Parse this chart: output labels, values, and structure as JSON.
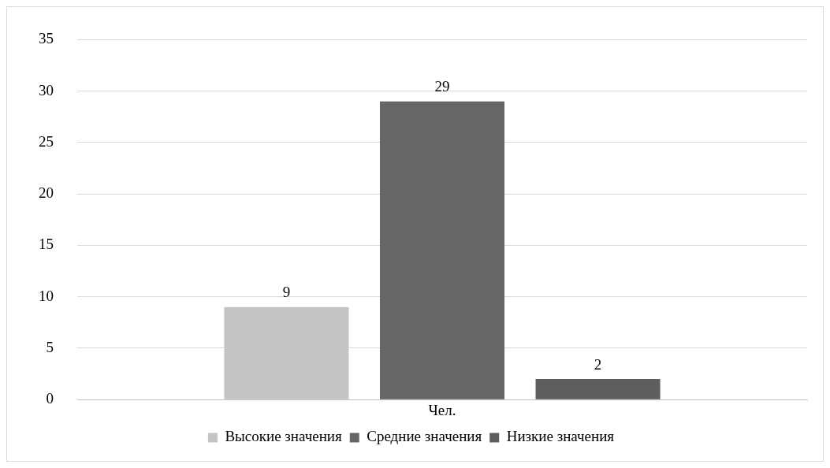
{
  "chart_data": {
    "type": "bar",
    "categories": [
      "Чел."
    ],
    "series": [
      {
        "name": "Высокие значения",
        "color": "#c4c4c4",
        "values": [
          9
        ]
      },
      {
        "name": "Средние значения",
        "color": "#666666",
        "values": [
          29
        ]
      },
      {
        "name": "Низкие значения",
        "color": "#5e5e5e",
        "values": [
          2
        ]
      }
    ],
    "ylim": [
      0,
      35
    ],
    "yticks": [
      0,
      5,
      10,
      15,
      20,
      25,
      30,
      35
    ],
    "grid": "y",
    "legend": "bottom",
    "data_labels": true
  }
}
